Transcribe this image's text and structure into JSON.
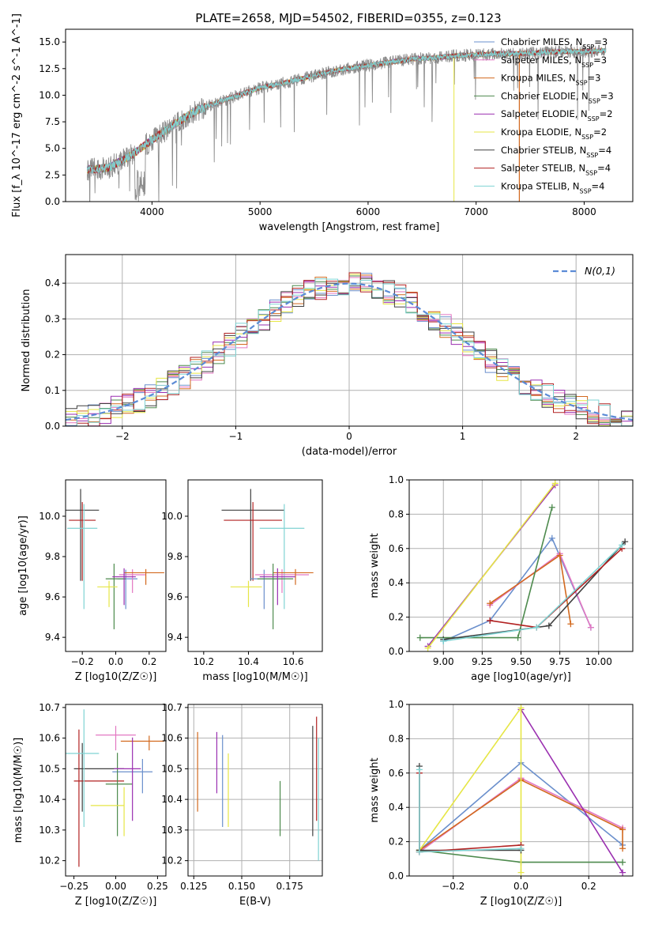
{
  "title": "PLATE=2658, MJD=54502, FIBERID=0355, z=0.123",
  "colors": {
    "chabrier_miles": "#6a8fcc",
    "salpeter_miles": "#e377c2",
    "kroupa_miles": "#d2691e",
    "chabrier_elodie": "#4d8a4d",
    "salpeter_elodie": "#9a2fb0",
    "kroupa_elodie": "#e6e645",
    "chabrier_stelib": "#404040",
    "salpeter_stelib": "#b22222",
    "kroupa_stelib": "#7fd3d3",
    "normal": "#5b8bd6",
    "grid": "#b0b0b0"
  },
  "chart_data": [
    {
      "type": "line",
      "title": "PLATE=2658, MJD=54502, FIBERID=0355, z=0.123",
      "xlabel": "wavelength [Angstrom, rest frame]",
      "ylabel": "Flux [f_λ 10^-17 erg cm^-2 s^-1 A^-1]",
      "xlim": [
        3200,
        8450
      ],
      "ylim": [
        0,
        16.2
      ],
      "xticks": [
        "4000",
        "5000",
        "6000",
        "7000",
        "8000"
      ],
      "yticks": [
        "0.0",
        "2.5",
        "5.0",
        "7.5",
        "10.0",
        "12.5",
        "15.0"
      ],
      "grid": false,
      "legend_position": "right",
      "x": [
        3400,
        3600,
        3800,
        4000,
        4200,
        4400,
        4600,
        4800,
        5000,
        5200,
        5400,
        5600,
        5800,
        6000,
        6200,
        6400,
        6600,
        6800,
        7000,
        7200,
        7400,
        7600,
        7800,
        8000,
        8200
      ],
      "series": [
        {
          "name": "Chabrier MILES, N_SSP=3",
          "values": [
            3.0,
            3.2,
            4.3,
            5.8,
            7.2,
            8.5,
            9.3,
            10.0,
            10.7,
            11.1,
            11.6,
            12.1,
            12.5,
            12.8,
            13.1,
            13.4,
            13.5,
            13.7,
            13.8,
            13.9,
            13.9,
            14.0,
            14.1,
            14.1,
            14.2
          ]
        },
        {
          "name": "Salpeter MILES, N_SSP=3",
          "values": [
            3.0,
            3.2,
            4.3,
            5.8,
            7.2,
            8.5,
            9.3,
            10.0,
            10.7,
            11.1,
            11.6,
            12.1,
            12.5,
            12.8,
            13.1,
            13.4,
            13.5,
            13.7,
            13.8,
            13.9,
            13.9,
            14.0,
            14.1,
            14.1,
            14.2
          ]
        },
        {
          "name": "Kroupa MILES, N_SSP=3",
          "values": [
            3.0,
            3.2,
            4.3,
            5.8,
            7.2,
            8.5,
            9.3,
            10.0,
            10.7,
            11.1,
            11.6,
            12.1,
            12.5,
            12.8,
            13.1,
            13.4,
            13.5,
            13.7,
            13.8,
            13.9,
            13.9,
            14.0,
            14.1,
            14.1,
            14.2
          ]
        },
        {
          "name": "Chabrier ELODIE, N_SSP=3",
          "values": [
            3.0,
            3.2,
            4.3,
            5.8,
            7.2,
            8.5,
            9.3,
            10.0,
            10.7,
            11.1,
            11.6,
            12.1,
            12.5,
            12.8,
            13.1,
            13.4,
            13.5,
            13.7,
            13.8,
            13.9,
            13.9,
            14.0,
            14.1,
            14.1,
            14.2
          ]
        },
        {
          "name": "Salpeter ELODIE, N_SSP=2",
          "values": [
            3.0,
            3.2,
            4.3,
            5.8,
            7.2,
            8.5,
            9.3,
            10.0,
            10.7,
            11.1,
            11.6,
            12.1,
            12.5,
            12.8,
            13.1,
            13.4,
            13.5,
            13.7,
            13.8,
            13.9,
            13.9,
            14.0,
            14.1,
            14.1,
            14.2
          ]
        },
        {
          "name": "Kroupa ELODIE, N_SSP=2",
          "values": [
            3.0,
            3.2,
            4.3,
            5.8,
            7.2,
            8.5,
            9.3,
            10.0,
            10.7,
            11.1,
            11.6,
            12.1,
            12.5,
            12.8,
            13.1,
            13.4,
            13.5,
            13.7,
            13.8,
            13.9,
            13.9,
            14.0,
            14.1,
            14.1,
            14.2
          ]
        },
        {
          "name": "Chabrier STELIB, N_SSP=4",
          "values": [
            3.0,
            3.2,
            4.3,
            5.8,
            7.2,
            8.5,
            9.3,
            10.0,
            10.7,
            11.1,
            11.6,
            12.1,
            12.5,
            12.8,
            13.1,
            13.4,
            13.5,
            13.7,
            13.8,
            13.9,
            13.9,
            14.0,
            14.1,
            14.1,
            14.2
          ]
        },
        {
          "name": "Salpeter STELIB, N_SSP=4",
          "values": [
            3.0,
            3.2,
            4.3,
            5.8,
            7.2,
            8.5,
            9.3,
            10.0,
            10.7,
            11.1,
            11.6,
            12.1,
            12.5,
            12.8,
            13.1,
            13.4,
            13.5,
            13.7,
            13.8,
            13.9,
            13.9,
            14.0,
            14.1,
            14.1,
            14.2
          ]
        },
        {
          "name": "Kroupa STELIB, N_SSP=4",
          "values": [
            3.0,
            3.2,
            4.3,
            5.8,
            7.2,
            8.5,
            9.3,
            10.0,
            10.7,
            11.1,
            11.6,
            12.1,
            12.5,
            12.8,
            13.1,
            13.4,
            13.5,
            13.7,
            13.8,
            13.9,
            13.9,
            14.0,
            14.1,
            14.1,
            14.2
          ]
        }
      ]
    },
    {
      "type": "bar",
      "xlabel": "(data-model)/error",
      "ylabel": "Normed distribution",
      "xlim": [
        -2.5,
        2.5
      ],
      "ylim": [
        0,
        0.48
      ],
      "xticks": [
        "−2",
        "−1",
        "0",
        "1",
        "2"
      ],
      "yticks": [
        "0.0",
        "0.1",
        "0.2",
        "0.3",
        "0.4"
      ],
      "grid": true,
      "legend_position": "top-right",
      "bin_edges_start": -2.5,
      "bin_width": 0.1,
      "series": [
        {
          "name": "N(0,1)",
          "values": []
        }
      ]
    },
    {
      "type": "scatter",
      "xlabel": "Z [log10(Z/Z☉)]",
      "ylabel": "age [log10(age/yr)]",
      "xlim": [
        -0.3,
        0.3
      ],
      "ylim": [
        9.33,
        10.18
      ],
      "xticks": [
        "−0.2",
        "0.0",
        "0.2"
      ],
      "yticks": [
        "9.4",
        "9.6",
        "9.8",
        "10.0"
      ],
      "grid": false,
      "points": [
        {
          "x": -0.2,
          "y": 10.03,
          "xerr": 0.1,
          "yerr": 0.35
        },
        {
          "x": -0.2,
          "y": 9.98,
          "xerr": 0.08,
          "yerr": 0.3
        },
        {
          "x": -0.2,
          "y": 9.94,
          "xerr": 0.09,
          "yerr": 0.4
        },
        {
          "x": 0.07,
          "y": 9.69,
          "xerr": 0.06,
          "yerr": 0.15
        },
        {
          "x": 0.1,
          "y": 9.71,
          "xerr": 0.08,
          "yerr": 0.09
        },
        {
          "x": 0.17,
          "y": 9.72,
          "xerr": 0.12,
          "yerr": 0.06
        },
        {
          "x": 0.0,
          "y": 9.69,
          "xerr": 0.06,
          "yerr": 0.25
        },
        {
          "x": 0.05,
          "y": 9.7,
          "xerr": 0.07,
          "yerr": 0.14
        },
        {
          "x": -0.05,
          "y": 9.65,
          "xerr": 0.06,
          "yerr": 0.1
        }
      ]
    },
    {
      "type": "scatter",
      "xlabel": "mass [log10(M/M☉)]",
      "ylabel": "",
      "xlim": [
        10.13,
        10.73
      ],
      "ylim": [
        9.33,
        10.18
      ],
      "xticks": [
        "10.2",
        "10.4",
        "10.6"
      ],
      "yticks": [
        "9.4",
        "9.6",
        "9.8",
        "10.0"
      ],
      "grid": false
    },
    {
      "type": "line",
      "xlabel": "age [log10(age/yr)]",
      "ylabel": "mass weight",
      "xlim": [
        8.78,
        10.22
      ],
      "ylim": [
        0,
        1
      ],
      "xticks": [
        "9.00",
        "9.25",
        "9.50",
        "9.75",
        "10.00"
      ],
      "yticks": [
        "0.0",
        "0.2",
        "0.4",
        "0.6",
        "0.8",
        "1.0"
      ],
      "grid": true,
      "series": [
        {
          "x": [
            9.0,
            9.3,
            9.7,
            9.95
          ],
          "values": [
            0.06,
            0.18,
            0.66,
            0.14
          ]
        },
        {
          "x": [
            9.3,
            9.75,
            9.95
          ],
          "values": [
            0.27,
            0.57,
            0.14
          ]
        },
        {
          "x": [
            9.3,
            9.75,
            9.82
          ],
          "values": [
            0.28,
            0.56,
            0.16
          ]
        },
        {
          "x": [
            8.85,
            9.48,
            9.7
          ],
          "values": [
            0.08,
            0.08,
            0.84
          ]
        },
        {
          "x": [
            8.9,
            9.72
          ],
          "values": [
            0.03,
            0.97
          ]
        },
        {
          "x": [
            8.9,
            9.72
          ],
          "values": [
            0.02,
            0.98
          ]
        },
        {
          "x": [
            9.0,
            9.68,
            10.17
          ],
          "values": [
            0.07,
            0.15,
            0.64
          ]
        },
        {
          "x": [
            9.3,
            9.6,
            10.15
          ],
          "values": [
            0.18,
            0.14,
            0.6
          ]
        },
        {
          "x": [
            9.0,
            9.6,
            10.15
          ],
          "values": [
            0.06,
            0.14,
            0.62
          ]
        }
      ]
    },
    {
      "type": "scatter",
      "xlabel": "Z [log10(Z/Z☉)]",
      "ylabel": "mass [log10(M/M☉)]",
      "xlim": [
        -0.3,
        0.3
      ],
      "ylim": [
        10.15,
        10.71
      ],
      "xticks": [
        "−0.25",
        "0.00",
        "0.25"
      ],
      "yticks": [
        "10.2",
        "10.3",
        "10.4",
        "10.5",
        "10.6",
        "10.7"
      ],
      "grid": false
    },
    {
      "type": "scatter",
      "xlabel": "E(B-V)",
      "ylabel": "",
      "xlim": [
        0.122,
        0.192
      ],
      "ylim": [
        10.15,
        10.71
      ],
      "xticks": [
        "0.125",
        "0.150",
        "0.175"
      ],
      "yticks": [
        "10.2",
        "10.3",
        "10.4",
        "10.5",
        "10.6",
        "10.7"
      ],
      "grid": true,
      "points": [
        {
          "x": 0.127,
          "y": 10.49,
          "yerr": 0.13
        },
        {
          "x": 0.137,
          "y": 10.52,
          "yerr": 0.1
        },
        {
          "x": 0.14,
          "y": 10.46,
          "yerr": 0.15
        },
        {
          "x": 0.143,
          "y": 10.43,
          "yerr": 0.12
        },
        {
          "x": 0.17,
          "y": 10.37,
          "yerr": 0.09
        },
        {
          "x": 0.187,
          "y": 10.46,
          "yerr": 0.18
        },
        {
          "x": 0.189,
          "y": 10.5,
          "yerr": 0.17
        },
        {
          "x": 0.19,
          "y": 10.4,
          "yerr": 0.2
        }
      ]
    },
    {
      "type": "line",
      "xlabel": "Z [log10(Z/Z☉)]",
      "ylabel": "mass weight",
      "xlim": [
        -0.33,
        0.33
      ],
      "ylim": [
        0,
        1
      ],
      "xticks": [
        "−0.2",
        "0.0",
        "0.2"
      ],
      "yticks": [
        "0.0",
        "0.2",
        "0.4",
        "0.6",
        "0.8",
        "1.0"
      ],
      "grid": true,
      "series": [
        {
          "x": [
            -0.3,
            0.0,
            0.3
          ],
          "values": [
            0.15,
            0.66,
            0.18
          ]
        },
        {
          "x": [
            -0.3,
            0.0,
            0.3
          ],
          "values": [
            0.14,
            0.57,
            0.28
          ]
        },
        {
          "x": [
            -0.3,
            0.0,
            0.3,
            0.3
          ],
          "values": [
            0.15,
            0.56,
            0.27,
            0.16
          ]
        },
        {
          "x": [
            -0.3,
            0.0,
            0.3
          ],
          "values": [
            0.15,
            0.08,
            0.08
          ]
        },
        {
          "x": [
            0.0,
            0.3
          ],
          "values": [
            0.97,
            0.02
          ]
        },
        {
          "x": [
            -0.3,
            0.0,
            0.0
          ],
          "values": [
            0.15,
            0.98,
            0.02
          ]
        },
        {
          "x": [
            -0.3,
            -0.3,
            0.0
          ],
          "values": [
            0.64,
            0.15,
            0.15
          ]
        },
        {
          "x": [
            -0.3,
            -0.3,
            0.0
          ],
          "values": [
            0.6,
            0.14,
            0.18
          ]
        },
        {
          "x": [
            -0.3,
            -0.3,
            0.0
          ],
          "values": [
            0.62,
            0.14,
            0.16
          ]
        }
      ]
    }
  ]
}
